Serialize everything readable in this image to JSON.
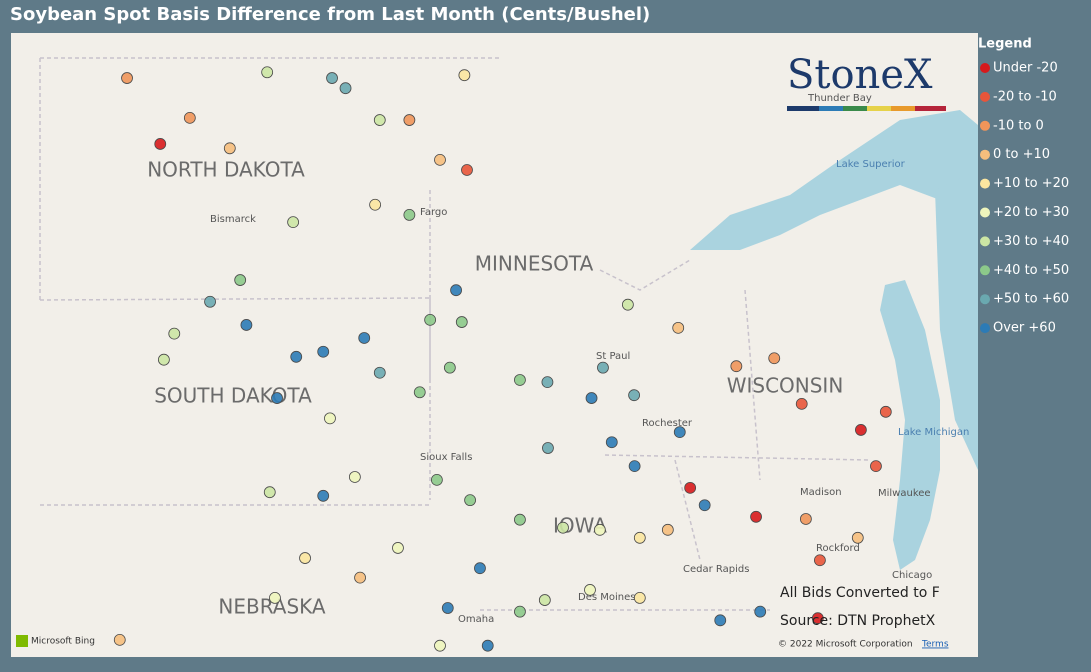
{
  "title": "Soybean Spot Basis Difference from Last Month (Cents/Bushel)",
  "legend": {
    "title": "Legend",
    "items": [
      {
        "label": "Under -20",
        "color": "#d7191c"
      },
      {
        "label": "-20 to -10",
        "color": "#e8553a"
      },
      {
        "label": "-10 to 0",
        "color": "#f0955a"
      },
      {
        "label": "0 to +10",
        "color": "#f6be7d"
      },
      {
        "label": "+10 to +20",
        "color": "#fbe6a0"
      },
      {
        "label": "+20 to +30",
        "color": "#eef5bc"
      },
      {
        "label": "+30 to +40",
        "color": "#cce6a4"
      },
      {
        "label": "+40 to +50",
        "color": "#8cc98a"
      },
      {
        "label": "+50 to +60",
        "color": "#6aa9b0"
      },
      {
        "label": "Over +60",
        "color": "#2c7bb6"
      }
    ]
  },
  "map": {
    "states": [
      "NORTH DAKOTA",
      "MINNESOTA",
      "SOUTH DAKOTA",
      "WISCONSIN",
      "IOWA",
      "NEBRASKA"
    ],
    "cities": [
      "Bismarck",
      "Fargo",
      "St Paul",
      "Rochester",
      "Sioux Falls",
      "Madison",
      "Milwaukee",
      "Rockford",
      "Cedar Rapids",
      "Chicago",
      "Des Moines",
      "Omaha",
      "Thunder Bay"
    ],
    "lakes": [
      "Lake Superior",
      "Lake Michigan"
    ],
    "logo": "StoneX",
    "notes": [
      "All Bids Converted to F",
      "Source: DTN ProphetX"
    ],
    "attribution": [
      "Microsoft Bing",
      "© 2022 Microsoft Corporation",
      "Terms"
    ]
  },
  "points": [
    [
      -102.34,
      48.73,
      2
    ],
    [
      -101.7,
      47.82,
      0
    ],
    [
      -101.13,
      48.18,
      2
    ],
    [
      -100.36,
      47.76,
      3
    ],
    [
      -99.64,
      48.81,
      6
    ],
    [
      -98.39,
      48.73,
      8
    ],
    [
      -98.13,
      48.59,
      8
    ],
    [
      -97.47,
      48.15,
      6
    ],
    [
      -96.9,
      48.15,
      2
    ],
    [
      -95.84,
      48.77,
      4
    ],
    [
      -95.79,
      47.46,
      1
    ],
    [
      -96.31,
      47.6,
      3
    ],
    [
      -97.56,
      46.98,
      4
    ],
    [
      -96.9,
      46.84,
      7
    ],
    [
      -99.14,
      46.74,
      6
    ],
    [
      -100.16,
      45.94,
      7
    ],
    [
      -100.74,
      45.64,
      8
    ],
    [
      -100.04,
      45.32,
      9
    ],
    [
      -99.08,
      44.88,
      9
    ],
    [
      -98.56,
      44.95,
      9
    ],
    [
      -97.77,
      45.14,
      9
    ],
    [
      -99.45,
      44.31,
      9
    ],
    [
      -98.56,
      42.96,
      9
    ],
    [
      -99.59,
      43.01,
      6
    ],
    [
      -101.63,
      44.84,
      6
    ],
    [
      -101.43,
      45.2,
      6
    ],
    [
      -97.47,
      44.66,
      8
    ],
    [
      -96.5,
      45.39,
      7
    ],
    [
      -95.89,
      45.36,
      7
    ],
    [
      -96.0,
      45.8,
      9
    ],
    [
      -96.7,
      44.39,
      7
    ],
    [
      -96.12,
      44.73,
      7
    ],
    [
      -94.77,
      44.56,
      7
    ],
    [
      -94.24,
      44.53,
      8
    ],
    [
      -93.39,
      44.31,
      9
    ],
    [
      -92.57,
      44.35,
      8
    ],
    [
      -93.17,
      44.73,
      8
    ],
    [
      -92.69,
      45.6,
      6
    ],
    [
      -91.72,
      45.28,
      3
    ],
    [
      -90.6,
      44.75,
      2
    ],
    [
      -89.87,
      44.86,
      2
    ],
    [
      -89.34,
      44.23,
      1
    ],
    [
      -88.2,
      43.87,
      0
    ],
    [
      -87.72,
      44.12,
      1
    ],
    [
      -87.91,
      43.37,
      1
    ],
    [
      -90.22,
      42.67,
      0
    ],
    [
      -89.26,
      42.64,
      2
    ],
    [
      -88.26,
      42.38,
      3
    ],
    [
      -91.69,
      43.84,
      9
    ],
    [
      -91.21,
      42.83,
      9
    ],
    [
      -91.49,
      43.07,
      0
    ],
    [
      -93.0,
      43.7,
      9
    ],
    [
      -92.56,
      43.37,
      9
    ],
    [
      -94.23,
      43.62,
      8
    ],
    [
      -96.37,
      43.18,
      7
    ],
    [
      -95.73,
      42.9,
      7
    ],
    [
      -94.77,
      42.63,
      7
    ],
    [
      -93.94,
      42.52,
      6
    ],
    [
      -93.23,
      42.49,
      5
    ],
    [
      -92.46,
      42.38,
      4
    ],
    [
      -91.92,
      42.49,
      3
    ],
    [
      -95.54,
      41.96,
      9
    ],
    [
      -96.16,
      41.41,
      9
    ],
    [
      -95.39,
      40.89,
      9
    ],
    [
      -94.77,
      41.36,
      7
    ],
    [
      -94.29,
      41.52,
      6
    ],
    [
      -93.42,
      41.66,
      5
    ],
    [
      -92.46,
      41.55,
      4
    ],
    [
      -90.91,
      41.24,
      9
    ],
    [
      -90.14,
      41.36,
      9
    ],
    [
      -88.99,
      42.07,
      1
    ],
    [
      -89.03,
      41.27,
      0
    ],
    [
      -97.12,
      42.24,
      5
    ],
    [
      -97.85,
      41.83,
      3
    ],
    [
      -98.91,
      42.1,
      4
    ],
    [
      -99.49,
      41.55,
      5
    ],
    [
      -102.48,
      40.97,
      3
    ],
    [
      -96.31,
      40.89,
      5
    ],
    [
      -98.43,
      44.03,
      5
    ],
    [
      -97.95,
      43.22,
      5
    ]
  ]
}
